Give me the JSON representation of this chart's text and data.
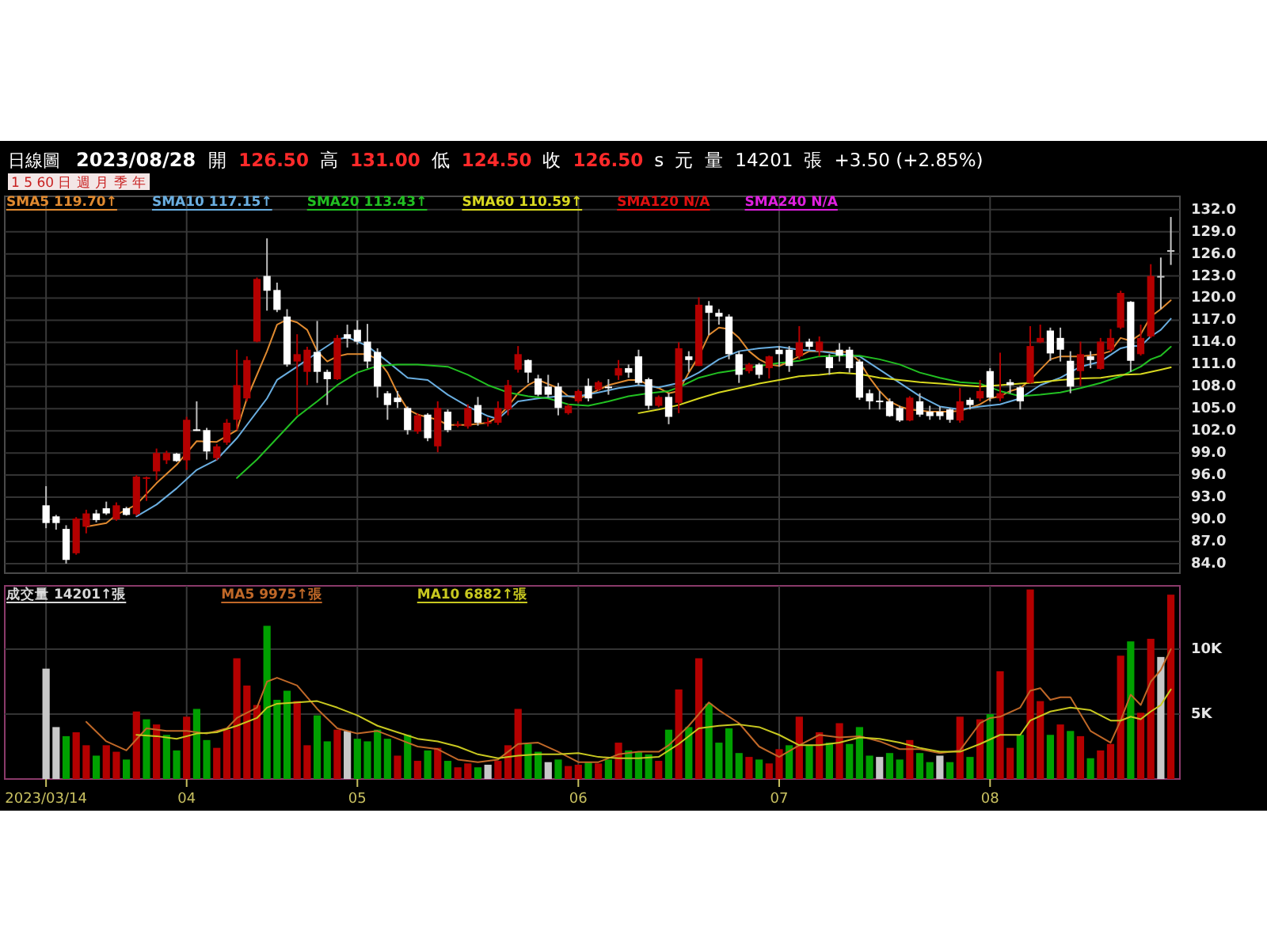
{
  "chart_data": [
    {
      "type": "candlestick",
      "title": "日線圖",
      "subtitle": "2023/08/28",
      "annotations": [
        "開",
        "126.50",
        "高",
        "131.00",
        "低",
        "124.50",
        "收",
        "126.50",
        "s",
        "元",
        "量",
        "14201",
        "張",
        "+3.50 (+2.85%)",
        "1 5 60 日 週 月 季 年"
      ],
      "categories": [
        "2023/03/14",
        null,
        null,
        null,
        null,
        null,
        null,
        null,
        null,
        null,
        null,
        null,
        null,
        null,
        "04",
        null,
        null,
        null,
        null,
        null,
        null,
        null,
        null,
        null,
        null,
        null,
        null,
        null,
        null,
        null,
        null,
        "05",
        null,
        null,
        null,
        null,
        null,
        null,
        null,
        null,
        null,
        null,
        null,
        null,
        null,
        null,
        null,
        null,
        null,
        null,
        null,
        null,
        null,
        "06",
        null,
        null,
        null,
        null,
        null,
        null,
        null,
        null,
        null,
        null,
        null,
        null,
        null,
        null,
        null,
        null,
        null,
        null,
        null,
        "07",
        null,
        null,
        null,
        null,
        null,
        null,
        null,
        null,
        null,
        null,
        null,
        null,
        null,
        null,
        null,
        null,
        null,
        null,
        null,
        null,
        "08",
        null,
        null,
        null,
        null,
        null,
        null,
        null,
        null,
        null,
        null,
        null,
        null,
        null,
        null,
        null,
        null,
        null,
        null
      ],
      "ylim": [
        82.7,
        133.8
      ],
      "yticks": [
        {
          "value": 84,
          "label": "84.0"
        },
        {
          "value": 87,
          "label": "87.0"
        },
        {
          "value": 90,
          "label": "90.0"
        },
        {
          "value": 93,
          "label": "93.0"
        },
        {
          "value": 96,
          "label": "96.0"
        },
        {
          "value": 99,
          "label": "99.0"
        },
        {
          "value": 102,
          "label": "102.0"
        },
        {
          "value": 105,
          "label": "105.0"
        },
        {
          "value": 108,
          "label": "108.0"
        },
        {
          "value": 111,
          "label": "111.0"
        },
        {
          "value": 114,
          "label": "114.0"
        },
        {
          "value": 117,
          "label": "117.0"
        },
        {
          "value": 120,
          "label": "120.0"
        },
        {
          "value": 123,
          "label": "123.0"
        },
        {
          "value": 126,
          "label": "126.0"
        },
        {
          "value": 129,
          "label": "129.0"
        },
        {
          "value": 132,
          "label": "132.0"
        }
      ],
      "tick_labels": "y",
      "grid": true,
      "legend": "top left",
      "ohlc": [
        [
          91.9,
          94.5,
          88.8,
          89.5
        ],
        [
          90.4,
          90.6,
          88.6,
          89.5
        ],
        [
          88.7,
          89.2,
          84.0,
          84.5
        ],
        [
          85.4,
          90.3,
          85.2,
          90.1
        ],
        [
          89.0,
          91.3,
          88.1,
          90.8
        ],
        [
          90.8,
          91.3,
          89.6,
          89.9
        ],
        [
          91.5,
          92.4,
          90.6,
          90.8
        ],
        [
          90.0,
          92.3,
          89.8,
          91.9
        ],
        [
          91.5,
          91.7,
          90.5,
          90.6
        ],
        [
          90.7,
          96.0,
          90.5,
          95.8
        ],
        [
          95.5,
          95.8,
          92.5,
          95.7
        ],
        [
          96.5,
          99.6,
          95.3,
          99.0
        ],
        [
          98.0,
          99.3,
          97.5,
          99.0
        ],
        [
          98.9,
          99.0,
          97.8,
          97.9
        ],
        [
          98.0,
          103.9,
          96.7,
          103.5
        ],
        [
          102.2,
          106.0,
          102.0,
          102.0
        ],
        [
          102.1,
          102.4,
          98.1,
          99.2
        ],
        [
          98.3,
          100.2,
          98.0,
          99.9
        ],
        [
          100.4,
          103.6,
          100.1,
          103.1
        ],
        [
          103.5,
          113.0,
          102.1,
          108.2
        ],
        [
          106.4,
          112.1,
          106.0,
          111.6
        ],
        [
          114.1,
          122.8,
          114.0,
          122.6
        ],
        [
          123.0,
          128.1,
          118.3,
          121.0
        ],
        [
          121.1,
          122.1,
          118.1,
          118.4
        ],
        [
          117.5,
          118.5,
          110.7,
          111.0
        ],
        [
          111.4,
          115.1,
          104.1,
          112.4
        ],
        [
          110.0,
          113.4,
          108.2,
          113.0
        ],
        [
          112.7,
          116.9,
          108.5,
          110.0
        ],
        [
          110.0,
          110.3,
          105.5,
          109.0
        ],
        [
          109.0,
          115.0,
          108.9,
          114.6
        ],
        [
          115.1,
          116.4,
          113.3,
          114.5
        ],
        [
          115.7,
          117.0,
          113.7,
          114.1
        ],
        [
          114.1,
          116.5,
          110.5,
          111.4
        ],
        [
          112.7,
          113.2,
          106.5,
          108.0
        ],
        [
          107.1,
          107.4,
          103.5,
          105.5
        ],
        [
          106.5,
          107.4,
          105.1,
          105.9
        ],
        [
          105.1,
          105.3,
          101.5,
          102.1
        ],
        [
          101.9,
          104.4,
          101.6,
          104.1
        ],
        [
          104.2,
          104.4,
          100.6,
          101.0
        ],
        [
          99.9,
          106.0,
          99.1,
          105.1
        ],
        [
          104.6,
          104.9,
          101.8,
          102.1
        ],
        [
          102.8,
          103.3,
          102.5,
          102.9
        ],
        [
          102.6,
          105.6,
          102.3,
          105.1
        ],
        [
          105.5,
          106.6,
          102.7,
          103.1
        ],
        [
          103.1,
          103.8,
          102.6,
          103.2
        ],
        [
          103.1,
          106.0,
          102.8,
          105.1
        ],
        [
          104.9,
          108.9,
          104.1,
          108.2
        ],
        [
          110.3,
          113.5,
          109.9,
          112.4
        ],
        [
          111.6,
          111.7,
          108.5,
          109.9
        ],
        [
          109.1,
          109.6,
          106.7,
          106.9
        ],
        [
          108.0,
          109.6,
          106.5,
          106.9
        ],
        [
          108.0,
          108.5,
          104.1,
          105.1
        ],
        [
          104.4,
          105.6,
          104.2,
          105.4
        ],
        [
          106.0,
          107.6,
          105.8,
          107.4
        ],
        [
          108.1,
          109.1,
          106.0,
          106.4
        ],
        [
          107.6,
          108.8,
          107.4,
          108.6
        ],
        [
          108.0,
          109.0,
          106.9,
          107.9
        ],
        [
          109.5,
          111.6,
          108.9,
          110.5
        ],
        [
          110.5,
          111.0,
          109.2,
          109.9
        ],
        [
          112.1,
          113.0,
          108.2,
          108.5
        ],
        [
          109.0,
          109.2,
          104.9,
          105.4
        ],
        [
          105.4,
          106.8,
          105.2,
          106.6
        ],
        [
          106.6,
          107.1,
          102.9,
          103.9
        ],
        [
          105.8,
          114.0,
          104.4,
          113.2
        ],
        [
          112.1,
          112.8,
          110.0,
          111.6
        ],
        [
          110.8,
          120.1,
          110.8,
          119.1
        ],
        [
          119.0,
          119.6,
          115.0,
          118.0
        ],
        [
          118.0,
          118.5,
          116.4,
          117.5
        ],
        [
          117.5,
          117.8,
          111.7,
          112.4
        ],
        [
          112.4,
          112.8,
          108.5,
          109.6
        ],
        [
          110.1,
          111.2,
          109.8,
          111.0
        ],
        [
          111.0,
          111.2,
          109.1,
          109.6
        ],
        [
          110.5,
          112.2,
          109.1,
          112.1
        ],
        [
          113.0,
          113.5,
          110.7,
          112.4
        ],
        [
          113.0,
          113.5,
          110.0,
          110.8
        ],
        [
          112.1,
          116.2,
          111.7,
          114.0
        ],
        [
          114.1,
          114.5,
          113.0,
          113.4
        ],
        [
          112.8,
          114.8,
          112.1,
          114.1
        ],
        [
          112.0,
          112.4,
          109.6,
          110.5
        ],
        [
          113.0,
          113.9,
          111.4,
          112.2
        ],
        [
          113.0,
          113.4,
          109.9,
          110.5
        ],
        [
          111.4,
          111.7,
          106.2,
          106.5
        ],
        [
          107.1,
          107.6,
          104.9,
          106.0
        ],
        [
          106.1,
          107.4,
          104.9,
          106.0
        ],
        [
          106.0,
          106.4,
          103.9,
          104.0
        ],
        [
          105.1,
          105.4,
          103.2,
          103.4
        ],
        [
          103.4,
          106.7,
          103.3,
          106.5
        ],
        [
          106.0,
          107.1,
          103.9,
          104.2
        ],
        [
          104.6,
          105.4,
          103.5,
          104.0
        ],
        [
          104.6,
          105.3,
          103.5,
          104.0
        ],
        [
          104.9,
          105.1,
          103.1,
          103.5
        ],
        [
          103.4,
          107.8,
          103.1,
          106.0
        ],
        [
          106.2,
          106.5,
          104.9,
          105.5
        ],
        [
          106.4,
          108.9,
          106.0,
          107.4
        ],
        [
          110.1,
          110.5,
          106.0,
          106.5
        ],
        [
          106.4,
          112.6,
          106.0,
          107.1
        ],
        [
          108.6,
          109.0,
          107.1,
          108.2
        ],
        [
          107.9,
          108.1,
          104.9,
          106.0
        ],
        [
          108.5,
          116.2,
          108.4,
          113.5
        ],
        [
          114.0,
          116.4,
          113.9,
          114.6
        ],
        [
          115.6,
          116.0,
          111.5,
          112.5
        ],
        [
          114.6,
          116.0,
          111.4,
          113.0
        ],
        [
          111.5,
          112.8,
          107.1,
          108.0
        ],
        [
          110.1,
          114.1,
          108.1,
          112.4
        ],
        [
          112.1,
          112.8,
          110.5,
          111.6
        ],
        [
          110.4,
          114.6,
          110.3,
          114.1
        ],
        [
          113.0,
          115.8,
          112.7,
          114.6
        ],
        [
          116.0,
          121.0,
          115.8,
          120.7
        ],
        [
          119.5,
          119.6,
          110.0,
          111.5
        ],
        [
          112.4,
          116.4,
          112.2,
          114.6
        ],
        [
          114.8,
          124.6,
          114.6,
          123.0
        ],
        [
          123.0,
          125.5,
          118.5,
          123.0
        ],
        [
          126.5,
          131.0,
          124.5,
          126.5
        ]
      ],
      "colors": [
        "#ffffff",
        "#ffffff",
        "#ffffff",
        "#b40000",
        "#b40000",
        "#ffffff",
        "#ffffff",
        "#b40000",
        "#ffffff",
        "#b40000",
        "#b40000",
        "#b40000",
        "#b40000",
        "#ffffff",
        "#b40000",
        "#ffffff",
        "#ffffff",
        "#b40000",
        "#b40000",
        "#b40000",
        "#b40000",
        "#b40000",
        "#ffffff",
        "#ffffff",
        "#ffffff",
        "#b40000",
        "#b40000",
        "#ffffff",
        "#ffffff",
        "#b40000",
        "#ffffff",
        "#ffffff",
        "#ffffff",
        "#ffffff",
        "#ffffff",
        "#ffffff",
        "#ffffff",
        "#b40000",
        "#ffffff",
        "#b40000",
        "#ffffff",
        "#b40000",
        "#b40000",
        "#ffffff",
        "#b40000",
        "#b40000",
        "#b40000",
        "#b40000",
        "#ffffff",
        "#ffffff",
        "#ffffff",
        "#ffffff",
        "#b40000",
        "#b40000",
        "#ffffff",
        "#b40000",
        "#ffffff",
        "#b40000",
        "#ffffff",
        "#ffffff",
        "#ffffff",
        "#b40000",
        "#ffffff",
        "#b40000",
        "#ffffff",
        "#b40000",
        "#ffffff",
        "#ffffff",
        "#ffffff",
        "#ffffff",
        "#b40000",
        "#ffffff",
        "#b40000",
        "#ffffff",
        "#ffffff",
        "#b40000",
        "#ffffff",
        "#b40000",
        "#ffffff",
        "#ffffff",
        "#ffffff",
        "#ffffff",
        "#ffffff",
        "#ffffff",
        "#ffffff",
        "#ffffff",
        "#b40000",
        "#ffffff",
        "#ffffff",
        "#ffffff",
        "#ffffff",
        "#b40000",
        "#ffffff",
        "#b40000",
        "#ffffff",
        "#b40000",
        "#ffffff",
        "#ffffff",
        "#b40000",
        "#b40000",
        "#ffffff",
        "#ffffff",
        "#ffffff",
        "#b40000",
        "#ffffff",
        "#b40000",
        "#b40000",
        "#b40000",
        "#ffffff",
        "#b40000",
        "#b40000",
        "#c8c8c8",
        "#c8c8c8"
      ],
      "series": [
        {
          "name": "SMA5 119.70↑",
          "type": "line",
          "color": "#e08a30",
          "values": [
            null,
            null,
            null,
            null,
            89.0,
            null,
            89.5,
            90.6,
            null,
            92.0,
            null,
            94.9,
            null,
            97.4,
            null,
            100.6,
            null,
            100.5,
            null,
            102.1,
            106.4,
            null,
            112.8,
            116.4,
            117.1,
            116.7,
            115.7,
            112.8,
            111.4,
            112.1,
            112.4,
            null,
            112.4,
            111.7,
            109.9,
            107.1,
            104.9,
            104.2,
            null,
            103.5,
            102.8,
            null,
            102.8,
            null,
            103.1,
            103.9,
            105.3,
            107.1,
            108.2,
            108.9,
            null,
            107.8,
            106.7,
            106.4,
            106.9,
            null,
            108.2,
            null,
            108.9,
            108.9,
            108.2,
            107.8,
            107.1,
            107.4,
            109.9,
            112.1,
            115.0,
            116.0,
            115.8,
            114.6,
            112.8,
            111.7,
            111.0,
            110.8,
            111.4,
            112.1,
            112.8,
            null,
            112.7,
            null,
            112.7,
            111.4,
            109.2,
            107.4,
            106.0,
            105.3,
            104.9,
            null,
            104.6,
            null,
            104.6,
            104.7,
            105.1,
            105.6,
            106.4,
            106.7,
            107.4,
            107.8,
            108.9,
            110.3,
            111.7,
            112.1,
            null,
            112.1,
            null,
            112.4,
            112.8,
            114.6,
            114.2,
            115.1,
            117.5,
            118.5,
            119.7
          ]
        },
        {
          "name": "SMA10 117.15↑",
          "type": "line",
          "color": "#6aaee0",
          "values": [
            null,
            null,
            null,
            null,
            null,
            null,
            null,
            null,
            null,
            90.4,
            null,
            92.0,
            null,
            94.2,
            null,
            96.7,
            null,
            98.1,
            null,
            101.0,
            102.8,
            null,
            106.4,
            108.9,
            null,
            110.7,
            null,
            112.6,
            null,
            114.4,
            114.7,
            null,
            113.5,
            null,
            111.4,
            null,
            109.2,
            null,
            108.9,
            null,
            106.9,
            null,
            105.3,
            null,
            104.0,
            103.6,
            null,
            106.0,
            null,
            106.4,
            null,
            106.7,
            null,
            106.7,
            null,
            107.2,
            null,
            107.8,
            null,
            108.2,
            null,
            107.9,
            null,
            108.5,
            null,
            109.9,
            null,
            111.7,
            null,
            112.8,
            null,
            113.2,
            null,
            113.4,
            null,
            113.0,
            null,
            112.8,
            null,
            112.4,
            null,
            112.1,
            null,
            110.3,
            null,
            108.5,
            null,
            106.7,
            null,
            105.3,
            null,
            104.9,
            null,
            105.3,
            null,
            105.6,
            null,
            106.4,
            null,
            108.2,
            null,
            109.2,
            null,
            110.7,
            null,
            111.4,
            null,
            113.2,
            113.5,
            113.5,
            114.8,
            115.7,
            117.2
          ]
        },
        {
          "name": "SMA20 113.43↑",
          "type": "line",
          "color": "#22c022",
          "values": [
            null,
            null,
            null,
            null,
            null,
            null,
            null,
            null,
            null,
            null,
            null,
            null,
            null,
            null,
            null,
            null,
            null,
            null,
            null,
            95.6,
            null,
            98.1,
            null,
            101.0,
            null,
            103.9,
            null,
            106.0,
            null,
            108.2,
            null,
            109.9,
            null,
            110.8,
            null,
            111.0,
            null,
            111.0,
            null,
            null,
            110.7,
            null,
            109.6,
            null,
            108.2,
            null,
            107.2,
            null,
            106.7,
            null,
            106.4,
            null,
            105.6,
            null,
            105.4,
            null,
            106.0,
            null,
            106.7,
            null,
            107.1,
            null,
            107.4,
            107.9,
            null,
            109.2,
            null,
            109.9,
            null,
            110.3,
            null,
            110.8,
            null,
            111.2,
            null,
            111.5,
            null,
            112.1,
            null,
            112.2,
            null,
            112.2,
            null,
            111.7,
            null,
            111.0,
            null,
            109.9,
            null,
            109.2,
            null,
            108.6,
            null,
            108.4,
            null,
            107.4,
            null,
            106.7,
            null,
            106.9,
            null,
            107.2,
            null,
            107.8,
            null,
            108.5,
            null,
            109.4,
            null,
            110.7,
            111.7,
            112.2,
            113.4
          ]
        },
        {
          "name": "SMA60 110.59↑",
          "type": "line",
          "color": "#d8d820",
          "values": [
            null,
            null,
            null,
            null,
            null,
            null,
            null,
            null,
            null,
            null,
            null,
            null,
            null,
            null,
            null,
            null,
            null,
            null,
            null,
            null,
            null,
            null,
            null,
            null,
            null,
            null,
            null,
            null,
            null,
            null,
            null,
            null,
            null,
            null,
            null,
            null,
            null,
            null,
            null,
            null,
            null,
            null,
            null,
            null,
            null,
            null,
            null,
            null,
            null,
            null,
            null,
            null,
            null,
            null,
            null,
            null,
            null,
            null,
            null,
            104.4,
            null,
            104.9,
            null,
            105.5,
            null,
            106.4,
            null,
            107.2,
            null,
            107.8,
            null,
            108.4,
            null,
            108.9,
            null,
            109.4,
            null,
            109.6,
            null,
            109.9,
            null,
            109.7,
            null,
            109.2,
            null,
            108.9,
            null,
            108.6,
            null,
            108.4,
            null,
            108.2,
            null,
            108.0,
            null,
            108.2,
            null,
            108.4,
            null,
            108.6,
            null,
            108.9,
            null,
            109.1,
            null,
            109.2,
            null,
            109.6,
            null,
            109.7,
            null,
            110.3,
            110.6
          ]
        },
        {
          "name": "SMA120 N/A",
          "type": "line",
          "color": "#e01010",
          "values": [
            null,
            null,
            null,
            null,
            null,
            null,
            null,
            null,
            null,
            null,
            null,
            null,
            null,
            null,
            null,
            null,
            null,
            null,
            null,
            null,
            null,
            null,
            null,
            null,
            null,
            null,
            null,
            null,
            null,
            null,
            null,
            null,
            null,
            null,
            null,
            null,
            null,
            null,
            null,
            null,
            null,
            null,
            null,
            null,
            null,
            null,
            null,
            null,
            null,
            null,
            null,
            null,
            null,
            null,
            null,
            null,
            null,
            null,
            null,
            null,
            null,
            null,
            null,
            null,
            null,
            null,
            null,
            null,
            null,
            null,
            null,
            null,
            null,
            null,
            null,
            null,
            null,
            null,
            null,
            null,
            null,
            null,
            null,
            null,
            null,
            null,
            null,
            null,
            null,
            null,
            null,
            null,
            null,
            null,
            null,
            null,
            null,
            null,
            null,
            null,
            null,
            null,
            null,
            null,
            null,
            null,
            null,
            null,
            null,
            null,
            null,
            null,
            null
          ]
        },
        {
          "name": "SMA240 N/A",
          "type": "line",
          "color": "#e020e0",
          "values": [
            null,
            null,
            null,
            null,
            null,
            null,
            null,
            null,
            null,
            null,
            null,
            null,
            null,
            null,
            null,
            null,
            null,
            null,
            null,
            null,
            null,
            null,
            null,
            null,
            null,
            null,
            null,
            null,
            null,
            null,
            null,
            null,
            null,
            null,
            null,
            null,
            null,
            null,
            null,
            null,
            null,
            null,
            null,
            null,
            null,
            null,
            null,
            null,
            null,
            null,
            null,
            null,
            null,
            null,
            null,
            null,
            null,
            null,
            null,
            null,
            null,
            null,
            null,
            null,
            null,
            null,
            null,
            null,
            null,
            null,
            null,
            null,
            null,
            null,
            null,
            null,
            null,
            null,
            null,
            null,
            null,
            null,
            null,
            null,
            null,
            null,
            null,
            null,
            null,
            null,
            null,
            null,
            null,
            null,
            null,
            null,
            null,
            null,
            null,
            null,
            null,
            null,
            null,
            null,
            null,
            null,
            null,
            null,
            null,
            null,
            null,
            null,
            null
          ]
        }
      ]
    },
    {
      "type": "bar",
      "categories": [
        "2023/03/14",
        null,
        null,
        null,
        null,
        null,
        null,
        null,
        null,
        null,
        null,
        null,
        null,
        null,
        "04",
        null,
        null,
        null,
        null,
        null,
        null,
        null,
        null,
        null,
        null,
        null,
        null,
        null,
        null,
        null,
        null,
        "05",
        null,
        null,
        null,
        null,
        null,
        null,
        null,
        null,
        null,
        null,
        null,
        null,
        null,
        null,
        null,
        null,
        null,
        null,
        null,
        null,
        null,
        "06",
        null,
        null,
        null,
        null,
        null,
        null,
        null,
        null,
        null,
        null,
        null,
        null,
        null,
        null,
        null,
        null,
        null,
        null,
        null,
        "07",
        null,
        null,
        null,
        null,
        null,
        null,
        null,
        null,
        null,
        null,
        null,
        null,
        null,
        null,
        null,
        null,
        null,
        null,
        null,
        null,
        "08",
        null,
        null,
        null,
        null,
        null,
        null,
        null,
        null,
        null,
        null,
        null,
        null,
        null,
        null,
        null,
        null,
        null,
        null
      ],
      "ylim": [
        0,
        14880
      ],
      "yticks": [
        {
          "value": 5000,
          "label": "5K"
        },
        {
          "value": 10000,
          "label": "10K"
        }
      ],
      "grid": true,
      "legend": "top left",
      "series": [
        {
          "name": "成交量 14201↑張",
          "values": [
            8500,
            4000,
            3300,
            3600,
            2600,
            1800,
            2600,
            2100,
            1500,
            5200,
            4600,
            4200,
            3400,
            2200,
            4800,
            5400,
            3000,
            2400,
            3800,
            9300,
            7200,
            5700,
            11800,
            6100,
            6800,
            6000,
            2600,
            4900,
            2900,
            3800,
            3700,
            3100,
            2900,
            3800,
            3100,
            1800,
            3400,
            1400,
            2200,
            2400,
            1400,
            900,
            1200,
            900,
            1100,
            1400,
            2600,
            5400,
            2700,
            2100,
            1300,
            1500,
            1000,
            1100,
            1300,
            1200,
            1500,
            2800,
            2200,
            2100,
            1900,
            1400,
            3800,
            6900,
            4000,
            9300,
            5800,
            2800,
            3900,
            2000,
            1700,
            1500,
            1200,
            2300,
            2600,
            4800,
            2600,
            3600,
            2800,
            4300,
            2700,
            4000,
            1800,
            1700,
            2000,
            1500,
            3000,
            2000,
            1300,
            1800,
            1300,
            4800,
            1700,
            4600,
            5000,
            8300,
            2400,
            3400,
            14600,
            6000,
            3400,
            4200,
            3700,
            3300,
            1600,
            2200,
            2700,
            9500,
            10600,
            5100,
            10800,
            9400,
            14200
          ],
          "colors": [
            "#c8c8c8",
            "#c8c8c8",
            "#00a000",
            "#b40000",
            "#b40000",
            "#00a000",
            "#b40000",
            "#b40000",
            "#00a000",
            "#b40000",
            "#00a000",
            "#b40000",
            "#00a000",
            "#00a000",
            "#b40000",
            "#00a000",
            "#00a000",
            "#b40000",
            "#b40000",
            "#b40000",
            "#b40000",
            "#b40000",
            "#00a000",
            "#00a000",
            "#00a000",
            "#b40000",
            "#b40000",
            "#00a000",
            "#00a000",
            "#b40000",
            "#c8c8c8",
            "#00a000",
            "#00a000",
            "#00a000",
            "#00a000",
            "#b40000",
            "#00a000",
            "#b40000",
            "#00a000",
            "#b40000",
            "#00a000",
            "#b40000",
            "#b40000",
            "#00a000",
            "#c8c8c8",
            "#b40000",
            "#b40000",
            "#b40000",
            "#00a000",
            "#00a000",
            "#c8c8c8",
            "#00a000",
            "#b40000",
            "#b40000",
            "#00a000",
            "#b40000",
            "#00a000",
            "#b40000",
            "#00a000",
            "#00a000",
            "#00a000",
            "#b40000",
            "#00a000",
            "#b40000",
            "#00a000",
            "#b40000",
            "#00a000",
            "#00a000",
            "#00a000",
            "#00a000",
            "#b40000",
            "#00a000",
            "#b40000",
            "#b40000",
            "#00a000",
            "#b40000",
            "#00a000",
            "#b40000",
            "#00a000",
            "#b40000",
            "#00a000",
            "#00a000",
            "#00a000",
            "#c8c8c8",
            "#00a000",
            "#00a000",
            "#b40000",
            "#00a000",
            "#00a000",
            "#c8c8c8",
            "#00a000",
            "#b40000",
            "#00a000",
            "#b40000",
            "#00a000",
            "#b40000",
            "#b40000",
            "#00a000",
            "#b40000",
            "#b40000",
            "#00a000",
            "#b40000",
            "#00a000",
            "#b40000",
            "#00a000",
            "#b40000",
            "#b40000",
            "#b40000",
            "#00a000",
            "#b40000",
            "#b40000",
            "#c8c8c8",
            "#b40000"
          ]
        },
        {
          "name": "MA5 9975↑張",
          "type": "line",
          "color": "#c06828",
          "values": [
            null,
            null,
            null,
            null,
            4400,
            null,
            2900,
            null,
            2200,
            null,
            3900,
            null,
            3700,
            null,
            3700,
            null,
            3500,
            null,
            3900,
            4700,
            null,
            5500,
            7500,
            7800,
            null,
            7200,
            null,
            5400,
            null,
            3900,
            null,
            3500,
            null,
            3700,
            null,
            3100,
            null,
            2500,
            null,
            2300,
            null,
            1500,
            null,
            1300,
            null,
            1500,
            null,
            2700,
            null,
            2800,
            null,
            2100,
            null,
            1300,
            null,
            1300,
            null,
            1900,
            null,
            2100,
            null,
            2100,
            2600,
            null,
            4100,
            null,
            5900,
            5300,
            null,
            4300,
            null,
            2500,
            null,
            1700,
            null,
            2600,
            null,
            3400,
            null,
            3200,
            null,
            3300,
            null,
            2900,
            null,
            2300,
            null,
            2300,
            null,
            2000,
            null,
            2200,
            null,
            4300,
            4700,
            4800,
            null,
            5500,
            6800,
            7000,
            6100,
            6300,
            6300,
            null,
            3700,
            null,
            2800,
            4500,
            6500,
            5700,
            7500,
            8400,
            10000
          ]
        },
        {
          "name": "MA10 6882↑張",
          "type": "line",
          "color": "#c8c820",
          "values": [
            null,
            null,
            null,
            null,
            null,
            null,
            null,
            null,
            null,
            3400,
            null,
            3300,
            null,
            3100,
            null,
            3500,
            null,
            3600,
            null,
            4100,
            null,
            4700,
            5500,
            5800,
            null,
            5900,
            null,
            6000,
            null,
            5500,
            null,
            4900,
            null,
            4100,
            null,
            3600,
            null,
            3100,
            null,
            2900,
            null,
            2500,
            null,
            1900,
            null,
            1600,
            null,
            1800,
            null,
            1900,
            null,
            1900,
            null,
            2000,
            null,
            1700,
            null,
            1600,
            null,
            1600,
            null,
            1700,
            null,
            2700,
            null,
            3900,
            null,
            4100,
            null,
            4200,
            null,
            4000,
            null,
            3400,
            null,
            2600,
            null,
            2600,
            null,
            2800,
            null,
            3200,
            null,
            3100,
            null,
            2800,
            null,
            2400,
            null,
            2100,
            null,
            2100,
            null,
            2700,
            null,
            3400,
            null,
            3400,
            4500,
            null,
            5200,
            null,
            5500,
            null,
            5300,
            null,
            4500,
            4500,
            4800,
            4600,
            5200,
            5700,
            6900
          ]
        }
      ]
    }
  ]
}
